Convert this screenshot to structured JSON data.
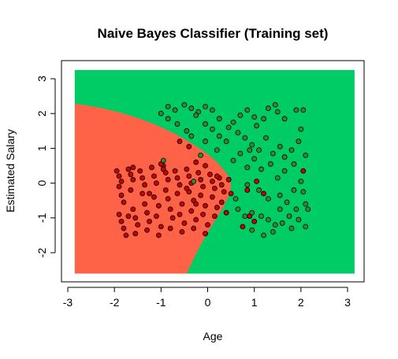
{
  "chart_data": {
    "type": "scatter",
    "title": "Naive Bayes Classifier (Training set)",
    "xlabel": "Age",
    "ylabel": "Estimated Salary",
    "xlim": [
      -3,
      3.2
    ],
    "ylim": [
      -2.7,
      3.3
    ],
    "xticks": [
      "-3",
      "-2",
      "-1",
      "0",
      "1",
      "2",
      "3"
    ],
    "yticks": [
      "-2",
      "-1",
      "0",
      "1",
      "2",
      "3"
    ],
    "grid": false,
    "colors": {
      "region_class_0": "#ff6347",
      "region_class_1": "#00cc66",
      "point_class_0": "#cc0000",
      "point_class_1": "#2e8b2e",
      "point_outline": "#000000"
    },
    "decision_region": {
      "x_range": [
        -2.85,
        3.15
      ],
      "y_range": [
        -2.6,
        3.25
      ],
      "boundary": [
        [
          -2.85,
          2.28
        ],
        [
          -2.5,
          2.22
        ],
        [
          -2.0,
          2.08
        ],
        [
          -1.5,
          1.88
        ],
        [
          -1.0,
          1.62
        ],
        [
          -0.5,
          1.28
        ],
        [
          0.0,
          0.85
        ],
        [
          0.3,
          0.48
        ],
        [
          0.55,
          0.0
        ],
        [
          0.38,
          -0.6
        ],
        [
          0.15,
          -1.1
        ],
        [
          -0.15,
          -1.75
        ],
        [
          -0.45,
          -2.6
        ]
      ]
    },
    "series": [
      {
        "class": 0,
        "points": [
          [
            -1.95,
            0.35
          ],
          [
            -1.9,
            0.2
          ],
          [
            -1.85,
            0.05
          ],
          [
            -1.9,
            -0.1
          ],
          [
            -1.85,
            -0.35
          ],
          [
            -1.8,
            -0.55
          ],
          [
            -1.9,
            -0.9
          ],
          [
            -1.85,
            -1.1
          ],
          [
            -1.8,
            -1.3
          ],
          [
            -1.75,
            -1.5
          ],
          [
            -1.7,
            0.4
          ],
          [
            -1.65,
            0.25
          ],
          [
            -1.6,
            0.1
          ],
          [
            -1.65,
            -0.2
          ],
          [
            -1.6,
            -0.75
          ],
          [
            -1.55,
            -1.0
          ],
          [
            -1.5,
            -1.2
          ],
          [
            -1.55,
            -1.45
          ],
          [
            -1.45,
            0.35
          ],
          [
            -1.4,
            0.15
          ],
          [
            -1.35,
            -0.05
          ],
          [
            -1.4,
            -0.3
          ],
          [
            -1.35,
            -0.6
          ],
          [
            -1.3,
            -0.85
          ],
          [
            -1.25,
            -1.1
          ],
          [
            -1.3,
            -1.35
          ],
          [
            -1.2,
            0.45
          ],
          [
            -1.15,
            0.2
          ],
          [
            -1.1,
            0.0
          ],
          [
            -1.15,
            -0.4
          ],
          [
            -1.05,
            -0.65
          ],
          [
            -1.1,
            -0.95
          ],
          [
            -1.0,
            -1.25
          ],
          [
            -1.05,
            -1.5
          ],
          [
            -0.95,
            0.5
          ],
          [
            -0.9,
            0.3
          ],
          [
            -0.85,
            0.1
          ],
          [
            -0.9,
            -0.2
          ],
          [
            -0.85,
            -0.45
          ],
          [
            -0.8,
            -0.75
          ],
          [
            -0.75,
            -1.0
          ],
          [
            -0.8,
            -1.3
          ],
          [
            -0.7,
            0.35
          ],
          [
            -0.65,
            0.15
          ],
          [
            -0.6,
            -0.05
          ],
          [
            -0.65,
            -0.3
          ],
          [
            -0.55,
            -0.6
          ],
          [
            -0.6,
            -0.9
          ],
          [
            -0.5,
            -1.15
          ],
          [
            -0.55,
            -1.4
          ],
          [
            -0.45,
            0.4
          ],
          [
            -0.4,
            0.2
          ],
          [
            -0.35,
            0.0
          ],
          [
            -0.4,
            -0.25
          ],
          [
            -0.3,
            -0.5
          ],
          [
            -0.35,
            -0.8
          ],
          [
            -0.25,
            -1.05
          ],
          [
            -0.3,
            -1.3
          ],
          [
            -0.2,
            0.3
          ],
          [
            -0.15,
            0.1
          ],
          [
            -0.1,
            -0.1
          ],
          [
            -0.15,
            -0.35
          ],
          [
            -0.05,
            -0.65
          ],
          [
            -0.1,
            -0.9
          ],
          [
            0.0,
            -1.2
          ],
          [
            -0.05,
            -1.45
          ],
          [
            0.05,
            0.25
          ],
          [
            0.1,
            0.05
          ],
          [
            0.15,
            -0.15
          ],
          [
            0.1,
            -0.4
          ],
          [
            0.2,
            -0.7
          ],
          [
            0.15,
            -0.95
          ],
          [
            0.25,
            0.15
          ],
          [
            0.3,
            -0.05
          ],
          [
            0.35,
            -0.25
          ],
          [
            0.3,
            -0.55
          ],
          [
            0.4,
            -0.85
          ],
          [
            0.45,
            0.1
          ],
          [
            0.5,
            -0.3
          ],
          [
            -0.6,
            1.2
          ],
          [
            -0.4,
            1.05
          ],
          [
            -0.25,
            0.6
          ],
          [
            -0.05,
            0.5
          ],
          [
            0.2,
            0.2
          ],
          [
            -1.0,
            0.55
          ],
          [
            -1.6,
            0.45
          ],
          [
            -0.95,
            0.4
          ],
          [
            0.75,
            -1.25
          ],
          [
            0.9,
            -0.95
          ],
          [
            0.85,
            -0.2
          ],
          [
            1.05,
            0.05
          ],
          [
            1.2,
            -0.3
          ],
          [
            2.05,
            0.35
          ],
          [
            1.0,
            -1.1
          ],
          [
            -0.25,
            -0.6
          ],
          [
            -0.45,
            -0.15
          ],
          [
            -1.25,
            -0.3
          ],
          [
            -1.7,
            -0.95
          ]
        ]
      },
      {
        "class": 1,
        "points": [
          [
            -0.85,
            2.2
          ],
          [
            -0.7,
            2.1
          ],
          [
            -0.5,
            2.25
          ],
          [
            -0.35,
            2.15
          ],
          [
            -0.2,
            2.05
          ],
          [
            -0.05,
            2.2
          ],
          [
            0.1,
            2.1
          ],
          [
            -0.85,
            1.85
          ],
          [
            -0.65,
            1.7
          ],
          [
            -0.45,
            1.5
          ],
          [
            -0.25,
            1.95
          ],
          [
            -0.05,
            1.7
          ],
          [
            0.1,
            1.55
          ],
          [
            0.25,
            1.35
          ],
          [
            0.4,
            1.2
          ],
          [
            0.55,
            1.75
          ],
          [
            0.7,
            1.95
          ],
          [
            0.85,
            2.1
          ],
          [
            1.0,
            1.9
          ],
          [
            1.05,
            1.65
          ],
          [
            1.2,
            1.85
          ],
          [
            1.3,
            2.15
          ],
          [
            1.45,
            2.25
          ],
          [
            1.5,
            2.05
          ],
          [
            1.65,
            1.85
          ],
          [
            1.9,
            2.1
          ],
          [
            2.05,
            2.1
          ],
          [
            0.65,
            1.45
          ],
          [
            0.8,
            1.3
          ],
          [
            0.95,
            1.1
          ],
          [
            1.1,
            0.95
          ],
          [
            1.25,
            1.3
          ],
          [
            1.4,
            0.85
          ],
          [
            1.55,
            1.05
          ],
          [
            1.8,
            0.95
          ],
          [
            1.95,
            1.2
          ],
          [
            2.1,
            0.8
          ],
          [
            0.55,
            0.65
          ],
          [
            0.7,
            0.85
          ],
          [
            0.85,
            0.45
          ],
          [
            1.0,
            0.7
          ],
          [
            1.15,
            0.4
          ],
          [
            1.35,
            0.55
          ],
          [
            1.5,
            0.15
          ],
          [
            1.65,
            0.35
          ],
          [
            1.85,
            0.55
          ],
          [
            2.0,
            0.05
          ],
          [
            2.05,
            -0.25
          ],
          [
            0.85,
            -0.05
          ],
          [
            1.1,
            -0.2
          ],
          [
            1.3,
            -0.45
          ],
          [
            1.55,
            -0.35
          ],
          [
            1.7,
            -0.55
          ],
          [
            1.85,
            -0.2
          ],
          [
            2.1,
            -0.6
          ],
          [
            0.65,
            -0.75
          ],
          [
            0.8,
            -0.95
          ],
          [
            0.95,
            -0.85
          ],
          [
            1.15,
            -0.95
          ],
          [
            1.3,
            -1.05
          ],
          [
            1.45,
            -1.2
          ],
          [
            1.6,
            -1.15
          ],
          [
            1.75,
            -0.95
          ],
          [
            1.95,
            -1.05
          ],
          [
            2.1,
            -1.25
          ],
          [
            0.95,
            -1.35
          ],
          [
            1.2,
            -1.5
          ],
          [
            1.4,
            -1.4
          ],
          [
            1.8,
            -1.3
          ],
          [
            2.15,
            -0.75
          ],
          [
            -0.05,
            1.2
          ],
          [
            -0.35,
            1.35
          ],
          [
            0.45,
            1.6
          ],
          [
            0.25,
            1.85
          ],
          [
            1.65,
            0.75
          ],
          [
            -0.95,
            0.65
          ],
          [
            -0.3,
            0.05
          ],
          [
            1.55,
            -0.75
          ],
          [
            0.9,
            0.95
          ],
          [
            -1.0,
            2.0
          ],
          [
            2.0,
            1.55
          ],
          [
            1.9,
            -0.75
          ],
          [
            0.6,
            -0.45
          ],
          [
            0.2,
            0.95
          ],
          [
            -0.15,
            0.8
          ]
        ]
      }
    ]
  }
}
